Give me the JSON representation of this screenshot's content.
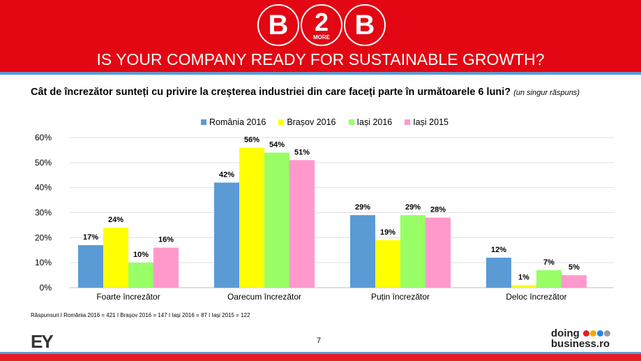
{
  "header": {
    "logo_text": [
      "B",
      "2",
      "B"
    ],
    "logo_sub": "MORE",
    "title": "IS YOUR COMPANY READY FOR SUSTAINABLE GROWTH?"
  },
  "question": {
    "text": "Cât de încrezător sunteți cu privire la creșterea industriei din care faceți parte în următoarele 6 luni?",
    "note": "(un singur răspuns)"
  },
  "chart_data": {
    "type": "bar",
    "categories": [
      "Foarte încrezător",
      "Oarecum încrezător",
      "Puțin încrezător",
      "Deloc încrezător"
    ],
    "series": [
      {
        "name": "România 2016",
        "color": "#5b9bd5",
        "values": [
          17,
          42,
          29,
          12
        ],
        "labels": [
          "17%",
          "42%",
          "29%",
          "12%"
        ]
      },
      {
        "name": "Brașov 2016",
        "color": "#ffff00",
        "values": [
          24,
          56,
          19,
          1
        ],
        "labels": [
          "24%",
          "56%",
          "19%",
          "1%"
        ]
      },
      {
        "name": "Iași 2016",
        "color": "#99ff66",
        "values": [
          10,
          54,
          29,
          7
        ],
        "labels": [
          "10%",
          "54%",
          "29%",
          "7%"
        ]
      },
      {
        "name": "Iași 2015",
        "color": "#ff99cc",
        "values": [
          16,
          51,
          28,
          5
        ],
        "labels": [
          "16%",
          "51%",
          "28%",
          "5%"
        ]
      }
    ],
    "yticks": [
      "0%",
      "10%",
      "20%",
      "30%",
      "40%",
      "50%",
      "60%"
    ],
    "ylim": [
      0,
      60
    ],
    "grid": true,
    "legend": "top"
  },
  "footer": {
    "note": "Răspunsuri I România 2016 = 421 I Brașov 2016 = 147 I Iași 2016 = 87 I Iași 2015 = 122",
    "page": "7",
    "ey": "EY",
    "db_line1": "doing",
    "db_line2": "business.ro"
  }
}
